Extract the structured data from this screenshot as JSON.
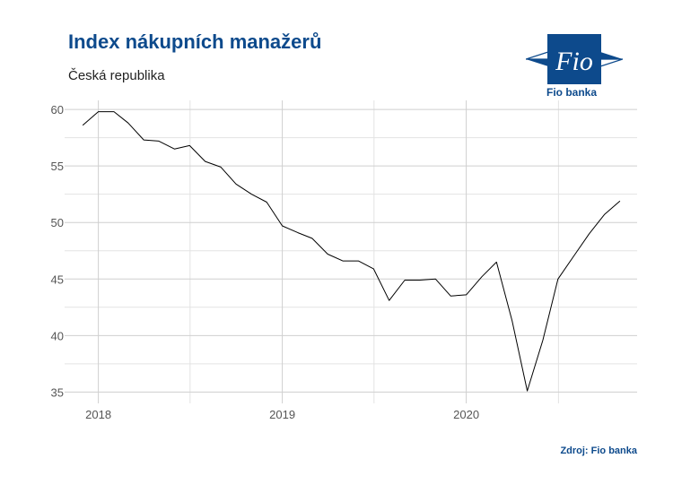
{
  "header": {
    "title": "Index nákupních manažerů",
    "subtitle": "Česká republika"
  },
  "logo": {
    "mark": "Fio",
    "name": "Fio banka",
    "color": "#0d4a8c"
  },
  "footer": {
    "source": "Zdroj: Fio banka"
  },
  "chart_data": {
    "type": "line",
    "title": "Index nákupních manažerů",
    "subtitle": "Česká republika",
    "xlabel": "",
    "ylabel": "",
    "x_ticks": [
      "2018",
      "2019",
      "2020"
    ],
    "y_ticks": [
      "35",
      "40",
      "45",
      "50",
      "55",
      "60"
    ],
    "ylim": [
      34,
      60.8
    ],
    "xlim": [
      "2017-10-26",
      "2020-12-05"
    ],
    "grid": true,
    "legend": "none",
    "series_color": "#000000",
    "series": [
      {
        "x": [
          "2017-12",
          "2018-01",
          "2018-02",
          "2018-03",
          "2018-04",
          "2018-05",
          "2018-06",
          "2018-07",
          "2018-08",
          "2018-09",
          "2018-10",
          "2018-11",
          "2018-12",
          "2019-01",
          "2019-02",
          "2019-03",
          "2019-04",
          "2019-05",
          "2019-06",
          "2019-07",
          "2019-08",
          "2019-09",
          "2019-10",
          "2019-11",
          "2019-12",
          "2020-01",
          "2020-02",
          "2020-03",
          "2020-04",
          "2020-05",
          "2020-06",
          "2020-07",
          "2020-08",
          "2020-09",
          "2020-10",
          "2020-11"
        ],
        "y": [
          58.6,
          59.8,
          59.8,
          58.8,
          57.3,
          57.2,
          56.5,
          56.8,
          55.4,
          54.9,
          53.4,
          52.5,
          51.8,
          49.7,
          49.1,
          48.6,
          47.2,
          46.6,
          46.6,
          45.9,
          43.1,
          44.9,
          44.9,
          45.0,
          43.5,
          43.6,
          45.2,
          46.5,
          41.3,
          35.1,
          39.6,
          45.0,
          47.0,
          49.0,
          50.7,
          51.9
        ]
      }
    ]
  }
}
